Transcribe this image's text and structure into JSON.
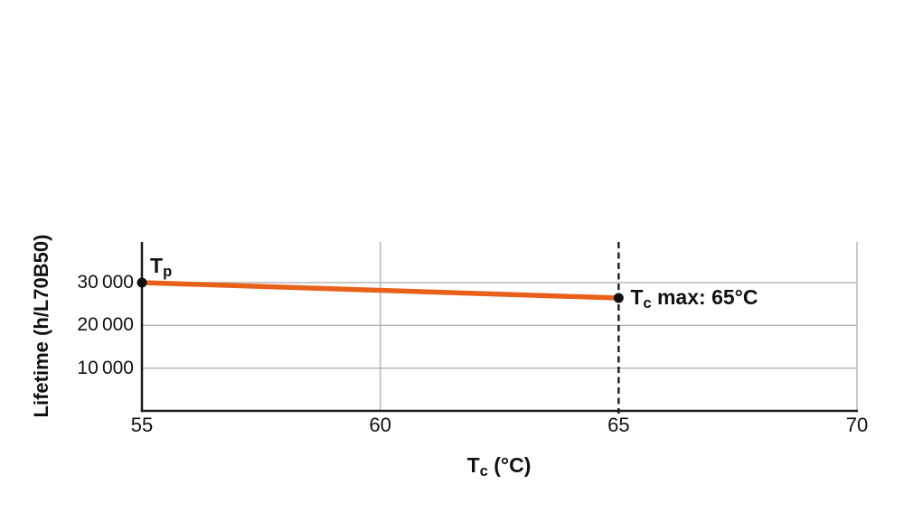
{
  "chart_data": {
    "type": "line",
    "title": "",
    "xlabel": "Tc (°C)",
    "ylabel": "Lifetime (h/L70B50)",
    "xlim": [
      55,
      70
    ],
    "ylim": [
      0,
      39500
    ],
    "xticks": [
      55,
      60,
      65,
      70
    ],
    "xtick_labels": [
      "55",
      "60",
      "65",
      "70"
    ],
    "yticks": [
      10000,
      20000,
      30000
    ],
    "ytick_labels": [
      "10 000",
      "20 000",
      "30 000"
    ],
    "grid": true,
    "x_gridlines": [
      60,
      70
    ],
    "y_gridlines": [
      10000,
      20000,
      30000
    ],
    "dashed_vline_x": 65,
    "legend": "none",
    "series": [
      {
        "name": "lifetime",
        "color": "#e8611a",
        "marker_color": "#111111",
        "points": [
          [
            55,
            30000
          ],
          [
            65,
            26400
          ]
        ]
      }
    ],
    "annotations": [
      {
        "id": "tp",
        "text": "Tp",
        "x": 55,
        "y": 30000,
        "parts": [
          {
            "text": "T"
          },
          {
            "text": "p",
            "sub": true
          }
        ]
      },
      {
        "id": "tc-max",
        "text": "Tc max: 65°C",
        "x": 65,
        "y": 26400,
        "parts": [
          {
            "text": "T"
          },
          {
            "text": "c",
            "sub": true
          },
          {
            "text": " max: 65°C"
          }
        ]
      }
    ]
  },
  "labels": {
    "ylabel_text": "Lifetime (h/L70B50)",
    "xlabel_T": "T",
    "xlabel_sub": "c",
    "xlabel_rest": " (°C)"
  },
  "colors": {
    "line_orange": "#e8611a",
    "grid_gray": "#b3b3b3",
    "axis_black": "#1a1a1a",
    "dashed_black": "#1a1a1a",
    "text_black": "#111111"
  }
}
